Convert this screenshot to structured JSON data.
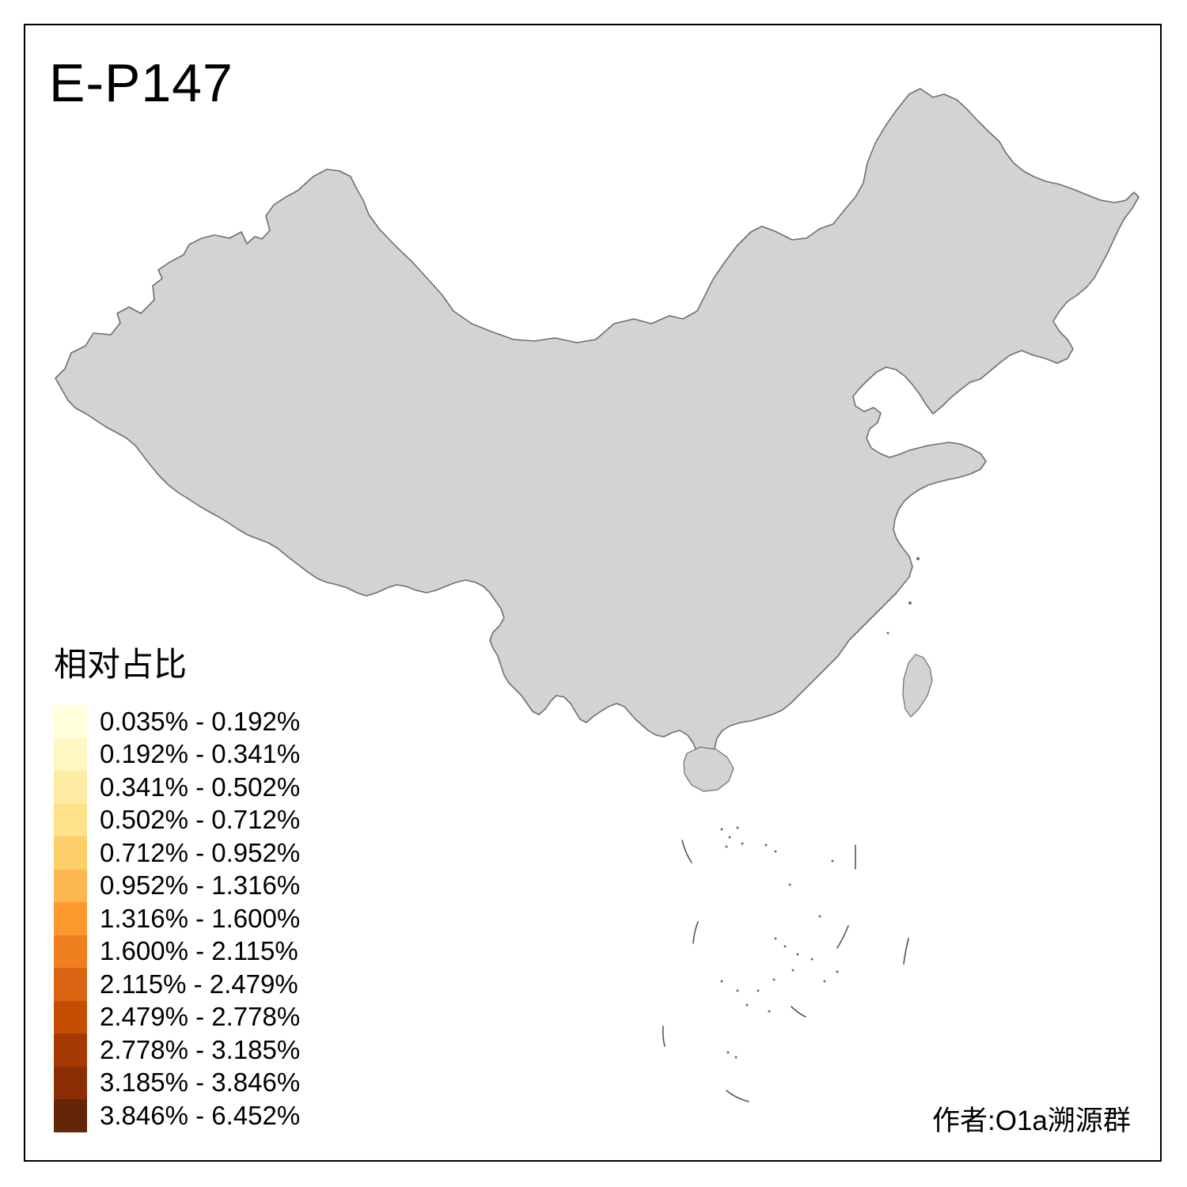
{
  "title": "E-P147",
  "attribution": "作者:O1a溯源群",
  "legend": {
    "title": "相对占比",
    "bins": [
      {
        "label": "0.035% - 0.192%",
        "color": "#FFFFDC"
      },
      {
        "label": "0.192% - 0.341%",
        "color": "#FFF7C2"
      },
      {
        "label": "0.341% - 0.502%",
        "color": "#FEEBA3"
      },
      {
        "label": "0.502% - 0.712%",
        "color": "#FEE188"
      },
      {
        "label": "0.712% - 0.952%",
        "color": "#FDCF69"
      },
      {
        "label": "0.952% - 1.316%",
        "color": "#FDB751"
      },
      {
        "label": "1.316% - 1.600%",
        "color": "#FD992C"
      },
      {
        "label": "1.600% - 2.115%",
        "color": "#EF7E1E"
      },
      {
        "label": "2.115% - 2.479%",
        "color": "#DB6412"
      },
      {
        "label": "2.479% - 2.778%",
        "color": "#C54E04"
      },
      {
        "label": "2.778% - 3.185%",
        "color": "#A63903"
      },
      {
        "label": "3.185% - 3.846%",
        "color": "#8A2D04"
      },
      {
        "label": "3.846% - 6.452%",
        "color": "#642606"
      }
    ]
  },
  "map": {
    "no_data_fill": "#D3D3D3",
    "island_fill": "#D3D3D3",
    "border_color": "#8F8F8F",
    "outline_color": "#6E6E6E",
    "background": "#FFFFFF",
    "patches": {
      "xj-altay": 7,
      "xj-tacheng": 3,
      "xj-karamay": 6,
      "xj-changji": 7,
      "xj-ili": 8,
      "xj-band": 11,
      "xj-kashgar": 11,
      "xj-hotan": 13,
      "xj-aksu": 9,
      "xj-bayingol": 9,
      "xj-hami": 6,
      "gs-jiuquan": 4,
      "gs-zhangye": 3,
      "qh-haidong": 5,
      "gs-gannan": 10,
      "gs-lanzhou": 8,
      "nx-wuzhong": 5,
      "nx-guyuan": 6,
      "nm-xilingol": 8,
      "nm-chifeng": 5,
      "nm-tongliao": 3,
      "nm-hinggan": 6,
      "nm-west-pale": 2,
      "nm-baotou": 3,
      "nm-ordos": 1,
      "heb-zhangjiakou": 2,
      "hl-yichun": 7,
      "hl-nenjiang": 2,
      "hl-qiqihar": 5,
      "hl-harbin": 1,
      "hl-daqing": 4,
      "jl-changchun": 1,
      "jl-strip": 4,
      "jl-dot": 6,
      "ln-pale": 2,
      "bj": 3,
      "bj-dot": 4,
      "tj": 2,
      "heb-s": 1,
      "sx-north": 2,
      "sx-linfen": 6,
      "sn-yulin": 3,
      "sn-xian": 2,
      "hen-zhengzhou": 4,
      "hen-2": 2,
      "sd-1": 2,
      "sd-2": 3,
      "heb-chengde": 3,
      "ah-bengbu": 5,
      "ah-pale": 2,
      "js-coast": 1,
      "js-2": 2,
      "sh": 2,
      "zj": 1,
      "zj-2": 2,
      "fj-quanzhou": 1,
      "hb-wuhan": 1,
      "hb-2": 1,
      "cq": 2,
      "sc-1": 1,
      "sc-2": 1,
      "hn-west": 5,
      "jx": 1,
      "gz-anshun": 5,
      "gx-hechi": 5,
      "gx-coast": 2,
      "gd-delta": 5,
      "gd-pale": 1,
      "yn-diqing": 9,
      "yn-dali": 2,
      "yn-south1": 3,
      "yn-south2": 2,
      "xz-lhasa": 8
    }
  }
}
